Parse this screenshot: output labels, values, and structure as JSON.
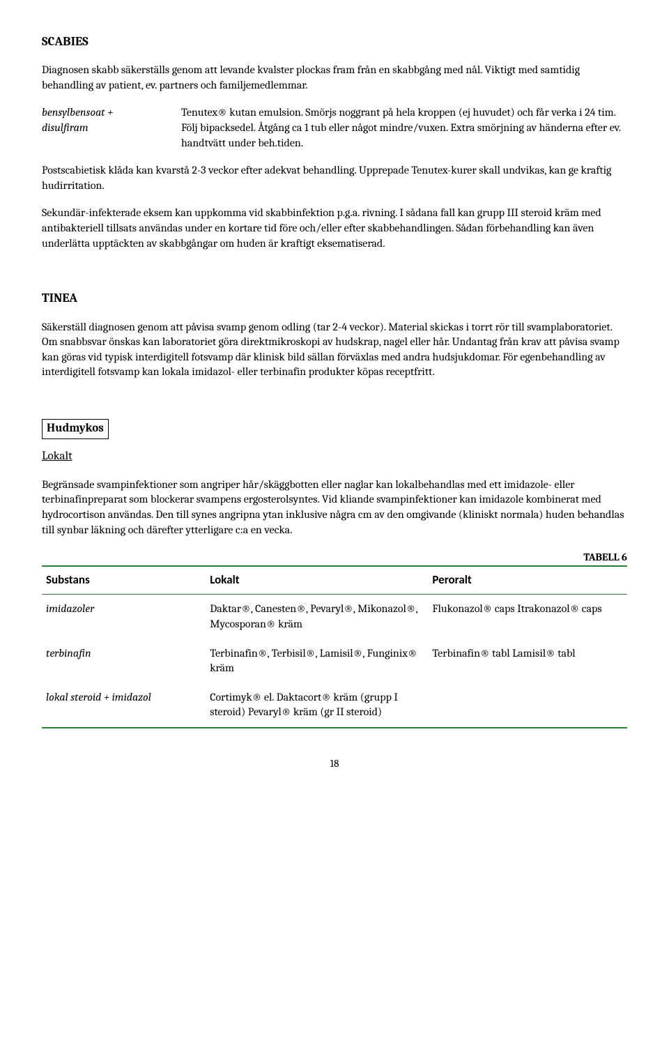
{
  "scabies": {
    "heading": "SCABIES",
    "intro": "Diagnosen skabb säkerställs genom att levande kvalster plockas fram från en skabbgång med nål. Viktigt med samtidig behandling av patient, ev. partners och familjemedlemmar.",
    "drug": {
      "substance_line1": "bensylbensoat +",
      "substance_line2": "disulfiram",
      "instructions": "Tenutex® kutan emulsion. Smörjs noggrant på hela kroppen (ej huvudet) och får verka i 24 tim. Följ bipacksedel. Åtgång ca 1 tub eller något mindre/vuxen. Extra smörjning av händerna efter ev. handtvätt under beh.tiden."
    },
    "para2": "Postscabietisk klåda kan kvarstå 2-3 veckor efter adekvat behandling. Upprepade Tenutex-kurer skall undvikas, kan ge kraftig hudirritation.",
    "para3": "Sekundär-infekterade eksem kan uppkomma vid skabbinfektion p.g.a. rivning. I sådana fall kan grupp III steroid kräm med antibakteriell tillsats användas under en kortare tid före och/eller efter skabbehandlingen. Sådan förbehandling kan även underlätta upptäckten av skabbgångar om huden är kraftigt eksematiserad."
  },
  "tinea": {
    "heading": "TINEA",
    "intro": "Säkerställ diagnosen genom att påvisa svamp genom odling (tar 2-4 veckor). Material skickas i torrt rör till svamplaboratoriet. Om snabbsvar önskas kan laboratoriet göra direktmikroskopi av hudskrap, nagel eller hår. Undantag från krav att påvisa svamp kan göras vid typisk interdigitell fotsvamp där klinisk bild sällan förväxlas med andra hudsjukdomar. För egenbehandling av interdigitell fotsvamp kan lokala imidazol- eller terbinafin produkter köpas receptfritt."
  },
  "hudmykos": {
    "box_label": "Hudmykos",
    "lokalt_label": "Lokalt",
    "intro": "Begränsade svampinfektioner som angriper hår/skäggbotten eller naglar kan lokalbehandlas med ett imidazole- eller terbinafinpreparat som blockerar svampens ergosterolsyntes. Vid kliande svampinfektioner kan imidazole kombinerat med hydrocortison användas. Den till synes angripna ytan inklusive några cm av den omgivande (kliniskt normala) huden behandlas till synbar läkning och därefter ytterligare c:a en vecka.",
    "table_label": "TABELL 6",
    "table": {
      "columns": [
        "Substans",
        "Lokalt",
        "Peroralt"
      ],
      "rows": [
        {
          "substance": "imidazoler",
          "lokalt": "Daktar®, Canesten®, Pevaryl®, Mikonazol®, Mycosporan® kräm",
          "peroralt": "Flukonazol® caps Itrakonazol® caps"
        },
        {
          "substance": "terbinafin",
          "lokalt": "Terbinafin®, Terbisil®, Lamisil®, Funginix® kräm",
          "peroralt": "Terbinafin® tabl Lamisil® tabl"
        },
        {
          "substance": "lokal steroid + imidazol",
          "lokalt": "Cortimyk® el. Daktacort® kräm (grupp I steroid) Pevaryl® kräm (gr II steroid)",
          "peroralt": ""
        }
      ]
    }
  },
  "page_number": "18",
  "colors": {
    "table_border": "#2e7d32",
    "text": "#000000",
    "background": "#ffffff"
  }
}
